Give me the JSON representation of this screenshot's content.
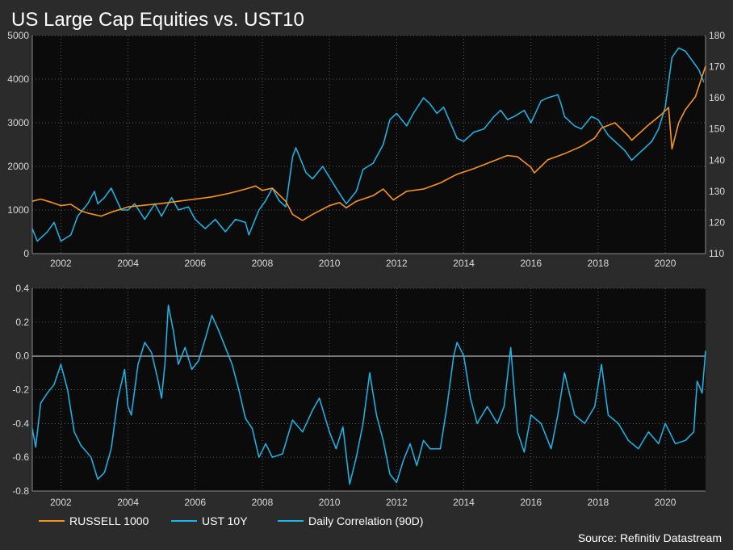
{
  "header": {
    "title": "US Large Cap Equities vs. UST10"
  },
  "source": "Source: Refinitiv Datastream",
  "colors": {
    "russell": "#f7941d",
    "ust": "#1ab7ea",
    "corr": "#1ab7ea",
    "background": "#2b2b2b",
    "panel": "#0b0b0b"
  },
  "chart_data": [
    {
      "type": "line",
      "title": "US Large Cap Equities vs. UST10",
      "x_axis": {
        "range": [
          2001.15,
          2021.2
        ],
        "ticks": [
          "2002",
          "2004",
          "2006",
          "2008",
          "2010",
          "2012",
          "2014",
          "2016",
          "2018",
          "2020"
        ]
      },
      "y_left": {
        "range": [
          0,
          5000
        ],
        "ticks": [
          "0",
          "1000",
          "2000",
          "3000",
          "4000",
          "5000"
        ]
      },
      "y_right": {
        "range": [
          110,
          180
        ],
        "ticks": [
          "110",
          "120",
          "130",
          "140",
          "150",
          "160",
          "170",
          "180"
        ]
      },
      "grid": true,
      "series": [
        {
          "name": "RUSSELL 1000",
          "axis": "left",
          "points": [
            [
              2001.15,
              1200
            ],
            [
              2001.4,
              1250
            ],
            [
              2001.7,
              1180
            ],
            [
              2002.0,
              1100
            ],
            [
              2002.3,
              1130
            ],
            [
              2002.6,
              980
            ],
            [
              2002.8,
              930
            ],
            [
              2003.2,
              860
            ],
            [
              2003.5,
              950
            ],
            [
              2003.8,
              1020
            ],
            [
              2004.0,
              1070
            ],
            [
              2004.5,
              1110
            ],
            [
              2005.0,
              1150
            ],
            [
              2005.5,
              1200
            ],
            [
              2006.0,
              1250
            ],
            [
              2006.5,
              1300
            ],
            [
              2007.0,
              1380
            ],
            [
              2007.5,
              1480
            ],
            [
              2007.8,
              1550
            ],
            [
              2008.0,
              1450
            ],
            [
              2008.3,
              1500
            ],
            [
              2008.7,
              1200
            ],
            [
              2008.9,
              900
            ],
            [
              2009.2,
              760
            ],
            [
              2009.5,
              900
            ],
            [
              2010.0,
              1100
            ],
            [
              2010.3,
              1170
            ],
            [
              2010.5,
              1050
            ],
            [
              2010.8,
              1200
            ],
            [
              2011.3,
              1330
            ],
            [
              2011.6,
              1480
            ],
            [
              2011.9,
              1230
            ],
            [
              2012.3,
              1430
            ],
            [
              2012.8,
              1480
            ],
            [
              2013.3,
              1620
            ],
            [
              2013.8,
              1820
            ],
            [
              2014.3,
              1950
            ],
            [
              2014.8,
              2100
            ],
            [
              2015.3,
              2250
            ],
            [
              2015.6,
              2220
            ],
            [
              2016.0,
              1980
            ],
            [
              2016.1,
              1850
            ],
            [
              2016.5,
              2150
            ],
            [
              2017.0,
              2290
            ],
            [
              2017.5,
              2460
            ],
            [
              2017.9,
              2650
            ],
            [
              2018.1,
              2880
            ],
            [
              2018.5,
              3000
            ],
            [
              2018.9,
              2700
            ],
            [
              2019.0,
              2600
            ],
            [
              2019.5,
              2950
            ],
            [
              2019.9,
              3200
            ],
            [
              2020.1,
              3350
            ],
            [
              2020.2,
              2400
            ],
            [
              2020.4,
              3000
            ],
            [
              2020.6,
              3300
            ],
            [
              2020.9,
              3600
            ],
            [
              2021.2,
              4300
            ]
          ]
        },
        {
          "name": "UST 10Y",
          "axis": "right",
          "points": [
            [
              2001.15,
              118
            ],
            [
              2001.3,
              114
            ],
            [
              2001.6,
              117
            ],
            [
              2001.8,
              120
            ],
            [
              2002.0,
              114
            ],
            [
              2002.3,
              116
            ],
            [
              2002.5,
              122
            ],
            [
              2002.8,
              126
            ],
            [
              2003.0,
              130
            ],
            [
              2003.1,
              126
            ],
            [
              2003.3,
              128
            ],
            [
              2003.5,
              131
            ],
            [
              2003.8,
              124
            ],
            [
              2004.0,
              124
            ],
            [
              2004.2,
              126
            ],
            [
              2004.5,
              121
            ],
            [
              2004.8,
              126
            ],
            [
              2005.0,
              122
            ],
            [
              2005.3,
              128
            ],
            [
              2005.5,
              124
            ],
            [
              2005.8,
              125
            ],
            [
              2006.0,
              121
            ],
            [
              2006.3,
              118
            ],
            [
              2006.6,
              121
            ],
            [
              2006.9,
              117
            ],
            [
              2007.2,
              121
            ],
            [
              2007.5,
              120
            ],
            [
              2007.6,
              116
            ],
            [
              2007.9,
              124
            ],
            [
              2008.1,
              127
            ],
            [
              2008.3,
              131
            ],
            [
              2008.5,
              127
            ],
            [
              2008.7,
              125
            ],
            [
              2008.9,
              141
            ],
            [
              2009.0,
              144
            ],
            [
              2009.3,
              136
            ],
            [
              2009.5,
              134
            ],
            [
              2009.8,
              138
            ],
            [
              2010.2,
              131
            ],
            [
              2010.5,
              126
            ],
            [
              2010.8,
              130
            ],
            [
              2011.0,
              137
            ],
            [
              2011.3,
              139
            ],
            [
              2011.6,
              145
            ],
            [
              2011.8,
              153
            ],
            [
              2012.0,
              155
            ],
            [
              2012.3,
              151
            ],
            [
              2012.5,
              155
            ],
            [
              2012.8,
              160
            ],
            [
              2013.0,
              158
            ],
            [
              2013.2,
              155
            ],
            [
              2013.4,
              157
            ],
            [
              2013.6,
              152
            ],
            [
              2013.8,
              147
            ],
            [
              2014.0,
              146
            ],
            [
              2014.3,
              149
            ],
            [
              2014.6,
              150
            ],
            [
              2014.9,
              154
            ],
            [
              2015.1,
              156
            ],
            [
              2015.3,
              153
            ],
            [
              2015.5,
              154
            ],
            [
              2015.8,
              156
            ],
            [
              2016.0,
              152
            ],
            [
              2016.3,
              159
            ],
            [
              2016.5,
              160
            ],
            [
              2016.8,
              161
            ],
            [
              2016.9,
              158
            ],
            [
              2017.0,
              154
            ],
            [
              2017.3,
              151
            ],
            [
              2017.5,
              150
            ],
            [
              2017.8,
              154
            ],
            [
              2018.0,
              153
            ],
            [
              2018.3,
              148
            ],
            [
              2018.5,
              146
            ],
            [
              2018.8,
              143
            ],
            [
              2019.0,
              140
            ],
            [
              2019.2,
              142
            ],
            [
              2019.4,
              144
            ],
            [
              2019.6,
              146
            ],
            [
              2019.8,
              150
            ],
            [
              2020.0,
              157
            ],
            [
              2020.1,
              165
            ],
            [
              2020.2,
              173
            ],
            [
              2020.4,
              176
            ],
            [
              2020.6,
              175
            ],
            [
              2020.8,
              172
            ],
            [
              2021.0,
              169
            ],
            [
              2021.15,
              165
            ]
          ]
        }
      ]
    },
    {
      "type": "line",
      "x_axis": {
        "range": [
          2001.15,
          2021.2
        ],
        "ticks": [
          "2002",
          "2004",
          "2006",
          "2008",
          "2010",
          "2012",
          "2014",
          "2016",
          "2018",
          "2020"
        ]
      },
      "y_left": {
        "range": [
          -0.8,
          0.4
        ],
        "ticks": [
          "0.4",
          "0.2",
          "0.0",
          "-0.2",
          "-0.4",
          "-0.6",
          "-0.8"
        ]
      },
      "grid": true,
      "series": [
        {
          "name": "Daily Correlation (90D)",
          "axis": "left",
          "points": [
            [
              2001.15,
              -0.43
            ],
            [
              2001.25,
              -0.54
            ],
            [
              2001.4,
              -0.28
            ],
            [
              2001.6,
              -0.22
            ],
            [
              2001.8,
              -0.17
            ],
            [
              2002.0,
              -0.05
            ],
            [
              2002.2,
              -0.2
            ],
            [
              2002.4,
              -0.45
            ],
            [
              2002.6,
              -0.53
            ],
            [
              2002.9,
              -0.6
            ],
            [
              2003.1,
              -0.73
            ],
            [
              2003.3,
              -0.69
            ],
            [
              2003.5,
              -0.55
            ],
            [
              2003.7,
              -0.25
            ],
            [
              2003.9,
              -0.08
            ],
            [
              2004.0,
              -0.3
            ],
            [
              2004.1,
              -0.35
            ],
            [
              2004.3,
              -0.05
            ],
            [
              2004.5,
              0.08
            ],
            [
              2004.7,
              0.02
            ],
            [
              2004.9,
              -0.15
            ],
            [
              2005.0,
              -0.25
            ],
            [
              2005.1,
              -0.05
            ],
            [
              2005.2,
              0.3
            ],
            [
              2005.35,
              0.15
            ],
            [
              2005.5,
              -0.05
            ],
            [
              2005.7,
              0.05
            ],
            [
              2005.9,
              -0.08
            ],
            [
              2006.1,
              -0.03
            ],
            [
              2006.3,
              0.1
            ],
            [
              2006.5,
              0.24
            ],
            [
              2006.7,
              0.15
            ],
            [
              2006.9,
              0.05
            ],
            [
              2007.1,
              -0.05
            ],
            [
              2007.3,
              -0.2
            ],
            [
              2007.5,
              -0.37
            ],
            [
              2007.7,
              -0.43
            ],
            [
              2007.9,
              -0.6
            ],
            [
              2008.1,
              -0.52
            ],
            [
              2008.3,
              -0.6
            ],
            [
              2008.6,
              -0.58
            ],
            [
              2008.9,
              -0.38
            ],
            [
              2009.2,
              -0.45
            ],
            [
              2009.5,
              -0.32
            ],
            [
              2009.7,
              -0.25
            ],
            [
              2010.0,
              -0.45
            ],
            [
              2010.2,
              -0.55
            ],
            [
              2010.4,
              -0.42
            ],
            [
              2010.6,
              -0.76
            ],
            [
              2010.8,
              -0.6
            ],
            [
              2011.0,
              -0.4
            ],
            [
              2011.2,
              -0.1
            ],
            [
              2011.4,
              -0.35
            ],
            [
              2011.6,
              -0.5
            ],
            [
              2011.8,
              -0.7
            ],
            [
              2012.0,
              -0.75
            ],
            [
              2012.2,
              -0.62
            ],
            [
              2012.4,
              -0.52
            ],
            [
              2012.6,
              -0.65
            ],
            [
              2012.8,
              -0.5
            ],
            [
              2013.0,
              -0.55
            ],
            [
              2013.3,
              -0.55
            ],
            [
              2013.5,
              -0.3
            ],
            [
              2013.7,
              0.0
            ],
            [
              2013.8,
              0.08
            ],
            [
              2014.0,
              0.0
            ],
            [
              2014.2,
              -0.25
            ],
            [
              2014.4,
              -0.4
            ],
            [
              2014.7,
              -0.3
            ],
            [
              2015.0,
              -0.4
            ],
            [
              2015.2,
              -0.3
            ],
            [
              2015.4,
              0.05
            ],
            [
              2015.6,
              -0.45
            ],
            [
              2015.8,
              -0.57
            ],
            [
              2016.0,
              -0.35
            ],
            [
              2016.3,
              -0.4
            ],
            [
              2016.6,
              -0.55
            ],
            [
              2016.8,
              -0.35
            ],
            [
              2017.0,
              -0.1
            ],
            [
              2017.3,
              -0.35
            ],
            [
              2017.6,
              -0.4
            ],
            [
              2017.9,
              -0.3
            ],
            [
              2018.1,
              -0.05
            ],
            [
              2018.3,
              -0.35
            ],
            [
              2018.6,
              -0.4
            ],
            [
              2018.9,
              -0.5
            ],
            [
              2019.2,
              -0.55
            ],
            [
              2019.5,
              -0.45
            ],
            [
              2019.8,
              -0.52
            ],
            [
              2020.0,
              -0.4
            ],
            [
              2020.3,
              -0.52
            ],
            [
              2020.6,
              -0.5
            ],
            [
              2020.85,
              -0.45
            ],
            [
              2020.95,
              -0.15
            ],
            [
              2021.1,
              -0.22
            ],
            [
              2021.2,
              0.03
            ]
          ]
        }
      ]
    }
  ]
}
